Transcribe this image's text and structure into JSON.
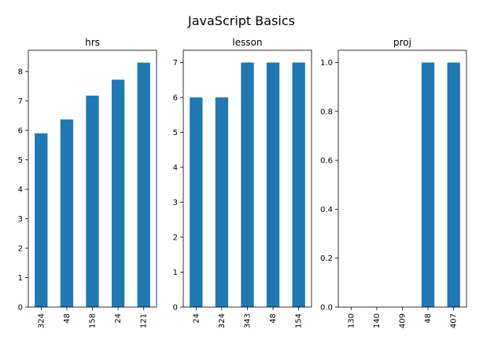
{
  "chart_data": {
    "type": "bar",
    "suptitle": "JavaScript Basics",
    "bar_color": "#1f77b4",
    "panels": [
      {
        "title": "hrs",
        "categories": [
          "324",
          "48",
          "158",
          "24",
          "121"
        ],
        "values": [
          5.9,
          6.37,
          7.18,
          7.72,
          8.3
        ],
        "ylim": [
          0,
          8.72
        ],
        "yticks": [
          0,
          1,
          2,
          3,
          4,
          5,
          6,
          7,
          8
        ],
        "ytick_labels": [
          "0",
          "1",
          "2",
          "3",
          "4",
          "5",
          "6",
          "7",
          "8"
        ]
      },
      {
        "title": "lesson",
        "categories": [
          "24",
          "324",
          "343",
          "48",
          "154"
        ],
        "values": [
          6,
          6,
          7,
          7,
          7
        ],
        "ylim": [
          0,
          7.35
        ],
        "yticks": [
          0,
          1,
          2,
          3,
          4,
          5,
          6,
          7
        ],
        "ytick_labels": [
          "0",
          "1",
          "2",
          "3",
          "4",
          "5",
          "6",
          "7"
        ]
      },
      {
        "title": "proj",
        "categories": [
          "130",
          "140",
          "409",
          "48",
          "407"
        ],
        "values": [
          0,
          0,
          0,
          1,
          1
        ],
        "ylim": [
          0,
          1.05
        ],
        "yticks": [
          0,
          0.2,
          0.4,
          0.6,
          0.8,
          1.0
        ],
        "ytick_labels": [
          "0.0",
          "0.2",
          "0.4",
          "0.6",
          "0.8",
          "1.0"
        ]
      }
    ]
  }
}
